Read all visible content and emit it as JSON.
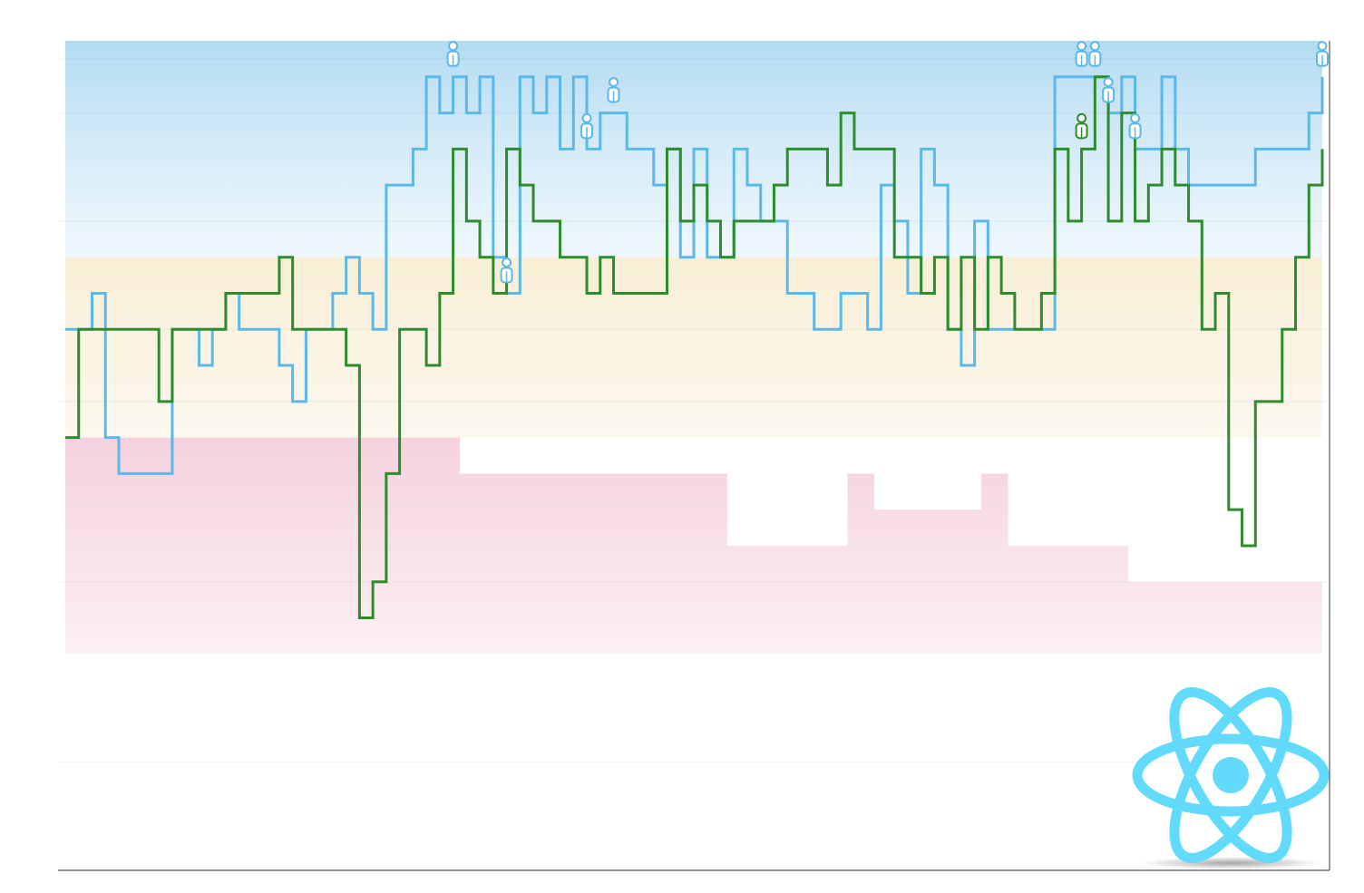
{
  "chart_data": {
    "type": "line",
    "step": true,
    "n_points": 95,
    "ylim": [
      0,
      23
    ],
    "grid": true,
    "legend": "none",
    "colors": {
      "series_a": "#5bb8e8",
      "series_b": "#2e8b2e",
      "band_top": "#a8d8f0",
      "band_mid": "#f9f1dc",
      "band_low": "#f5d3df",
      "logo": "#61dafb"
    },
    "series": [
      {
        "key": "series_a",
        "values": [
          15,
          15,
          16,
          12,
          11,
          11,
          11,
          11,
          15,
          15,
          14,
          15,
          16,
          15,
          15,
          15,
          14,
          13,
          15,
          15,
          16,
          17,
          16,
          15,
          19,
          19,
          20,
          22,
          21,
          22,
          21,
          22,
          17,
          16,
          22,
          21,
          22,
          20,
          22,
          20,
          21,
          21,
          20,
          20,
          19,
          20,
          17,
          20,
          17,
          17,
          20,
          19,
          18,
          18,
          16,
          16,
          15,
          15,
          16,
          16,
          15,
          19,
          18,
          16,
          20,
          19,
          15,
          14,
          18,
          15,
          15,
          15,
          15,
          15,
          22,
          22,
          22,
          22,
          21,
          22,
          20,
          20,
          22,
          20,
          19,
          19,
          19,
          19,
          19,
          20,
          20,
          20,
          20,
          21,
          22
        ],
        "markers": [
          29,
          33,
          39,
          41,
          76,
          77,
          78,
          80,
          94
        ]
      },
      {
        "key": "series_b",
        "values": [
          12,
          15,
          15,
          15,
          15,
          15,
          15,
          13,
          15,
          15,
          15,
          15,
          16,
          16,
          16,
          16,
          17,
          15,
          15,
          15,
          15,
          14,
          7,
          8,
          11,
          15,
          15,
          14,
          16,
          20,
          18,
          17,
          16,
          20,
          19,
          18,
          18,
          17,
          17,
          16,
          17,
          16,
          16,
          16,
          16,
          20,
          18,
          19,
          18,
          17,
          18,
          18,
          18,
          19,
          20,
          20,
          20,
          19,
          21,
          20,
          20,
          20,
          17,
          17,
          16,
          17,
          15,
          17,
          15,
          17,
          16,
          15,
          15,
          16,
          20,
          18,
          20,
          22,
          18,
          21,
          18,
          19,
          20,
          19,
          18,
          15,
          16,
          10,
          9,
          13,
          13,
          15,
          17,
          19,
          20
        ],
        "markers": [
          76
        ]
      }
    ],
    "bands": {
      "top_upper": [
        23,
        23,
        23,
        23,
        23,
        23,
        23,
        23,
        23,
        23,
        23,
        23,
        23,
        23,
        23,
        23,
        23,
        23,
        23,
        23,
        23,
        23,
        23,
        23,
        23,
        23,
        23,
        23,
        23,
        23,
        23,
        23,
        23,
        23,
        23,
        23,
        23,
        23,
        23,
        23,
        23,
        23,
        23,
        23,
        23,
        23,
        23,
        23,
        23,
        23,
        23,
        23,
        23,
        23,
        23,
        23,
        23,
        23,
        23,
        23,
        23,
        23,
        23,
        23,
        23,
        23,
        23,
        23,
        23,
        23,
        23,
        23,
        23,
        23,
        23,
        23,
        23,
        23,
        23,
        23,
        23,
        23,
        23,
        23,
        23,
        23,
        23,
        23,
        23,
        23,
        23,
        23,
        23,
        23,
        23
      ],
      "top_lower": [
        17,
        17,
        17,
        17,
        17,
        17,
        17,
        17,
        17,
        17,
        17,
        17,
        17,
        17,
        17,
        17,
        17,
        17,
        17,
        17,
        17,
        17,
        17,
        17,
        17,
        17,
        17,
        17,
        17,
        17,
        17,
        17,
        17,
        17,
        17,
        17,
        17,
        17,
        17,
        17,
        17,
        17,
        17,
        17,
        17,
        17,
        17,
        17,
        17,
        17,
        17,
        17,
        17,
        17,
        17,
        17,
        17,
        17,
        17,
        17,
        17,
        17,
        17,
        17,
        17,
        17,
        17,
        17,
        17,
        17,
        17,
        17,
        17,
        17,
        17,
        17,
        17,
        17,
        17,
        17,
        17,
        17,
        17,
        17,
        17,
        17,
        17,
        17,
        17,
        17,
        17,
        17,
        17,
        17,
        17
      ],
      "mid_upper": [
        17,
        17,
        17,
        17,
        17,
        17,
        17,
        17,
        17,
        17,
        17,
        17,
        17,
        17,
        17,
        17,
        17,
        17,
        17,
        17,
        17,
        17,
        17,
        17,
        17,
        17,
        17,
        17,
        17,
        17,
        17,
        17,
        17,
        17,
        17,
        17,
        17,
        17,
        17,
        17,
        17,
        17,
        17,
        17,
        17,
        17,
        17,
        17,
        17,
        17,
        17,
        17,
        17,
        17,
        17,
        17,
        17,
        17,
        17,
        17,
        17,
        17,
        17,
        17,
        17,
        17,
        17,
        17,
        17,
        17,
        17,
        17,
        17,
        17,
        17,
        17,
        17,
        17,
        17,
        17,
        17,
        17,
        17,
        17,
        17,
        17,
        17,
        17,
        17,
        17,
        17,
        17,
        17,
        17,
        17
      ],
      "mid_lower": [
        12,
        12,
        12,
        12,
        12,
        12,
        12,
        12,
        12,
        12,
        12,
        12,
        12,
        12,
        12,
        12,
        12,
        12,
        12,
        12,
        12,
        12,
        12,
        12,
        12,
        12,
        12,
        12,
        12,
        12,
        12,
        12,
        12,
        12,
        12,
        12,
        12,
        12,
        12,
        12,
        12,
        12,
        12,
        12,
        12,
        12,
        12,
        12,
        12,
        12,
        12,
        12,
        12,
        12,
        12,
        12,
        12,
        12,
        12,
        12,
        12,
        12,
        12,
        12,
        12,
        12,
        12,
        12,
        12,
        12,
        12,
        12,
        12,
        12,
        12,
        12,
        12,
        12,
        12,
        12,
        12,
        12,
        12,
        12,
        12,
        12,
        12,
        12,
        12,
        12,
        12,
        12,
        12,
        12,
        12
      ],
      "low_upper": [
        12,
        12,
        12,
        12,
        12,
        12,
        12,
        12,
        12,
        12,
        12,
        12,
        12,
        12,
        12,
        12,
        12,
        12,
        12,
        12,
        12,
        12,
        12,
        12,
        12,
        12,
        12,
        12,
        12,
        12,
        11,
        11,
        11,
        11,
        11,
        11,
        11,
        11,
        11,
        11,
        11,
        11,
        11,
        11,
        11,
        11,
        11,
        11,
        11,
        11,
        9,
        9,
        9,
        9,
        9,
        9,
        9,
        9,
        9,
        11,
        11,
        10,
        10,
        10,
        10,
        10,
        10,
        10,
        10,
        11,
        11,
        9,
        9,
        9,
        9,
        9,
        9,
        9,
        9,
        9,
        8,
        8,
        8,
        8,
        8,
        8,
        8,
        8,
        8,
        8,
        8,
        8,
        8,
        8,
        8
      ],
      "low_lower": [
        6,
        6,
        6,
        6,
        6,
        6,
        6,
        6,
        6,
        6,
        6,
        6,
        6,
        6,
        6,
        6,
        6,
        6,
        6,
        6,
        6,
        6,
        6,
        6,
        6,
        6,
        6,
        6,
        6,
        6,
        6,
        6,
        6,
        6,
        6,
        6,
        6,
        6,
        6,
        6,
        6,
        6,
        6,
        6,
        6,
        6,
        6,
        6,
        6,
        6,
        6,
        6,
        6,
        6,
        6,
        6,
        6,
        6,
        6,
        6,
        6,
        6,
        6,
        6,
        6,
        6,
        6,
        6,
        6,
        6,
        6,
        6,
        6,
        6,
        6,
        6,
        6,
        6,
        6,
        6,
        6,
        6,
        6,
        6,
        6,
        6,
        6,
        6,
        6,
        6,
        6,
        6,
        6,
        6,
        6
      ]
    }
  }
}
